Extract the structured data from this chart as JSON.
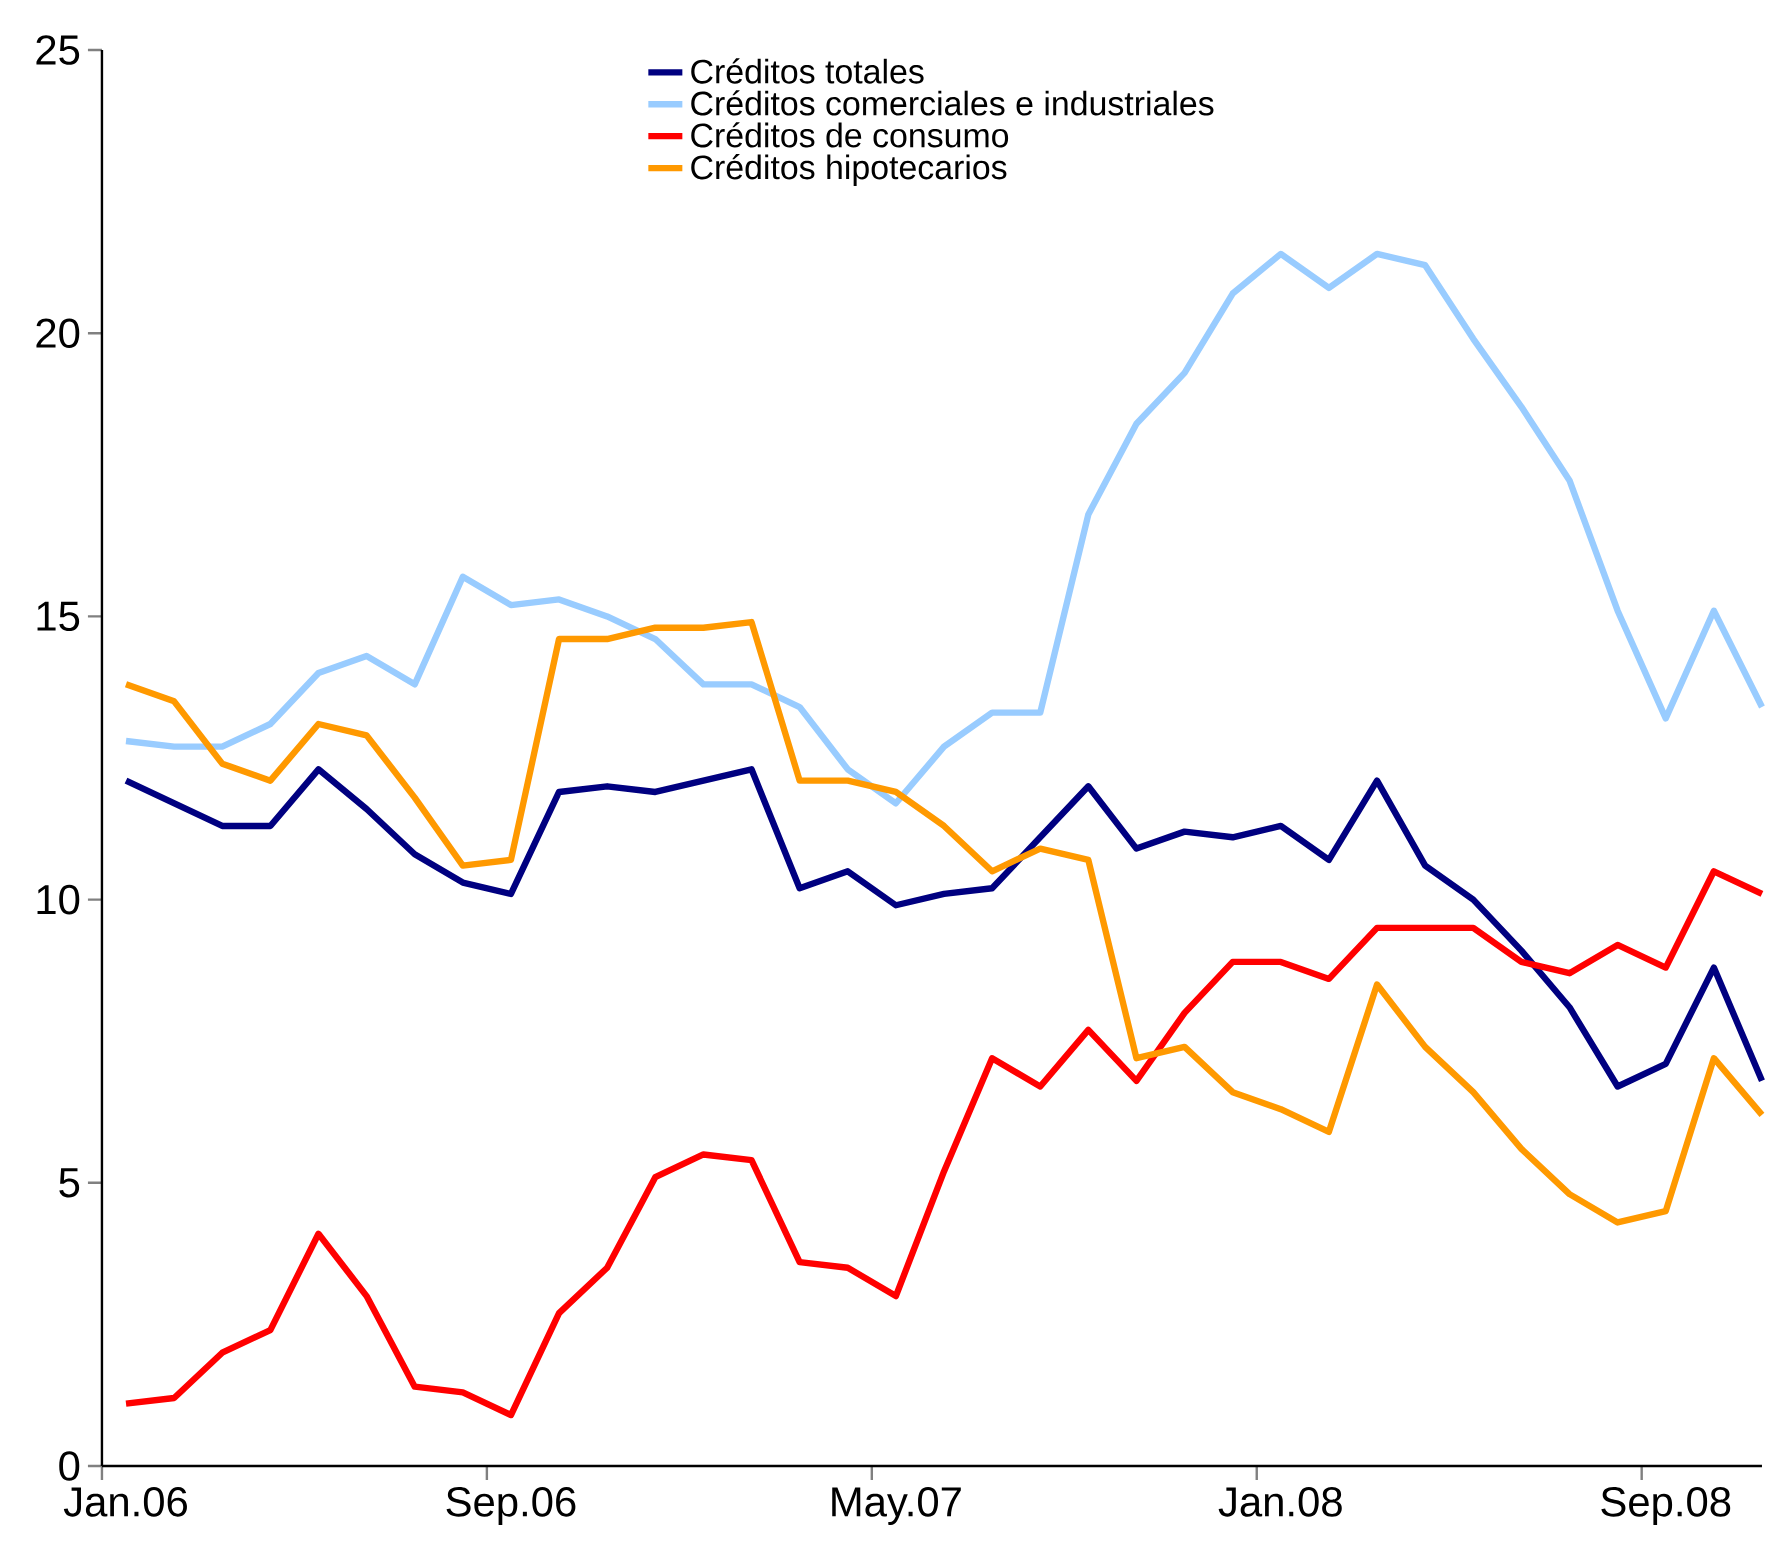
{
  "chart_data": {
    "type": "line",
    "categories": [
      "Jan.06",
      null,
      null,
      null,
      null,
      null,
      null,
      null,
      "Sep.06",
      null,
      null,
      null,
      null,
      null,
      null,
      null,
      "May.07",
      null,
      null,
      null,
      null,
      null,
      null,
      null,
      "Jan.08",
      null,
      null,
      null,
      null,
      null,
      null,
      null,
      "Sep.08",
      null,
      null
    ],
    "ylim": [
      0,
      25
    ],
    "yticks": [
      0,
      5,
      10,
      15,
      20,
      25
    ],
    "legend": "top",
    "marker": "none",
    "series": [
      {
        "name": "Créditos totales",
        "color": "#000080",
        "values": [
          12.1,
          11.7,
          11.3,
          11.3,
          12.3,
          11.6,
          10.8,
          10.3,
          10.1,
          11.9,
          12.0,
          11.9,
          12.1,
          12.3,
          10.2,
          10.5,
          9.9,
          10.1,
          10.2,
          11.1,
          12.0,
          10.9,
          11.2,
          11.1,
          11.3,
          10.7,
          12.1,
          10.6,
          10.0,
          9.1,
          8.1,
          6.7,
          7.1,
          8.8,
          6.8
        ]
      },
      {
        "name": "Créditos comerciales e industriales",
        "color": "#99ccff",
        "values": [
          12.8,
          12.7,
          12.7,
          13.1,
          14.0,
          14.3,
          13.8,
          15.7,
          15.2,
          15.3,
          15.0,
          14.6,
          13.8,
          13.8,
          13.4,
          12.3,
          11.7,
          12.7,
          13.3,
          13.3,
          16.8,
          18.4,
          19.3,
          20.7,
          21.4,
          20.8,
          21.4,
          21.2,
          19.9,
          18.7,
          17.4,
          15.1,
          13.2,
          15.1,
          13.4
        ]
      },
      {
        "name": "Créditos de consumo",
        "color": "#ff0000",
        "values": [
          1.1,
          1.2,
          2.0,
          2.4,
          4.1,
          3.0,
          1.4,
          1.3,
          0.9,
          2.7,
          3.5,
          5.1,
          5.5,
          5.4,
          3.6,
          3.5,
          3.0,
          5.2,
          7.2,
          6.7,
          7.7,
          6.8,
          8.0,
          8.9,
          8.9,
          8.6,
          9.5,
          9.5,
          9.5,
          8.9,
          8.7,
          9.2,
          8.8,
          10.5,
          10.1
        ]
      },
      {
        "name": "Créditos hipotecarios",
        "color": "#ff9900",
        "values": [
          13.8,
          13.5,
          12.4,
          12.1,
          13.1,
          12.9,
          11.8,
          10.6,
          10.7,
          14.6,
          14.6,
          14.8,
          14.8,
          14.9,
          12.1,
          12.1,
          11.9,
          11.3,
          10.5,
          10.9,
          10.7,
          7.2,
          7.4,
          6.6,
          6.3,
          5.9,
          8.5,
          7.4,
          6.6,
          5.6,
          4.8,
          4.3,
          4.5,
          7.2,
          6.2
        ]
      }
    ]
  }
}
